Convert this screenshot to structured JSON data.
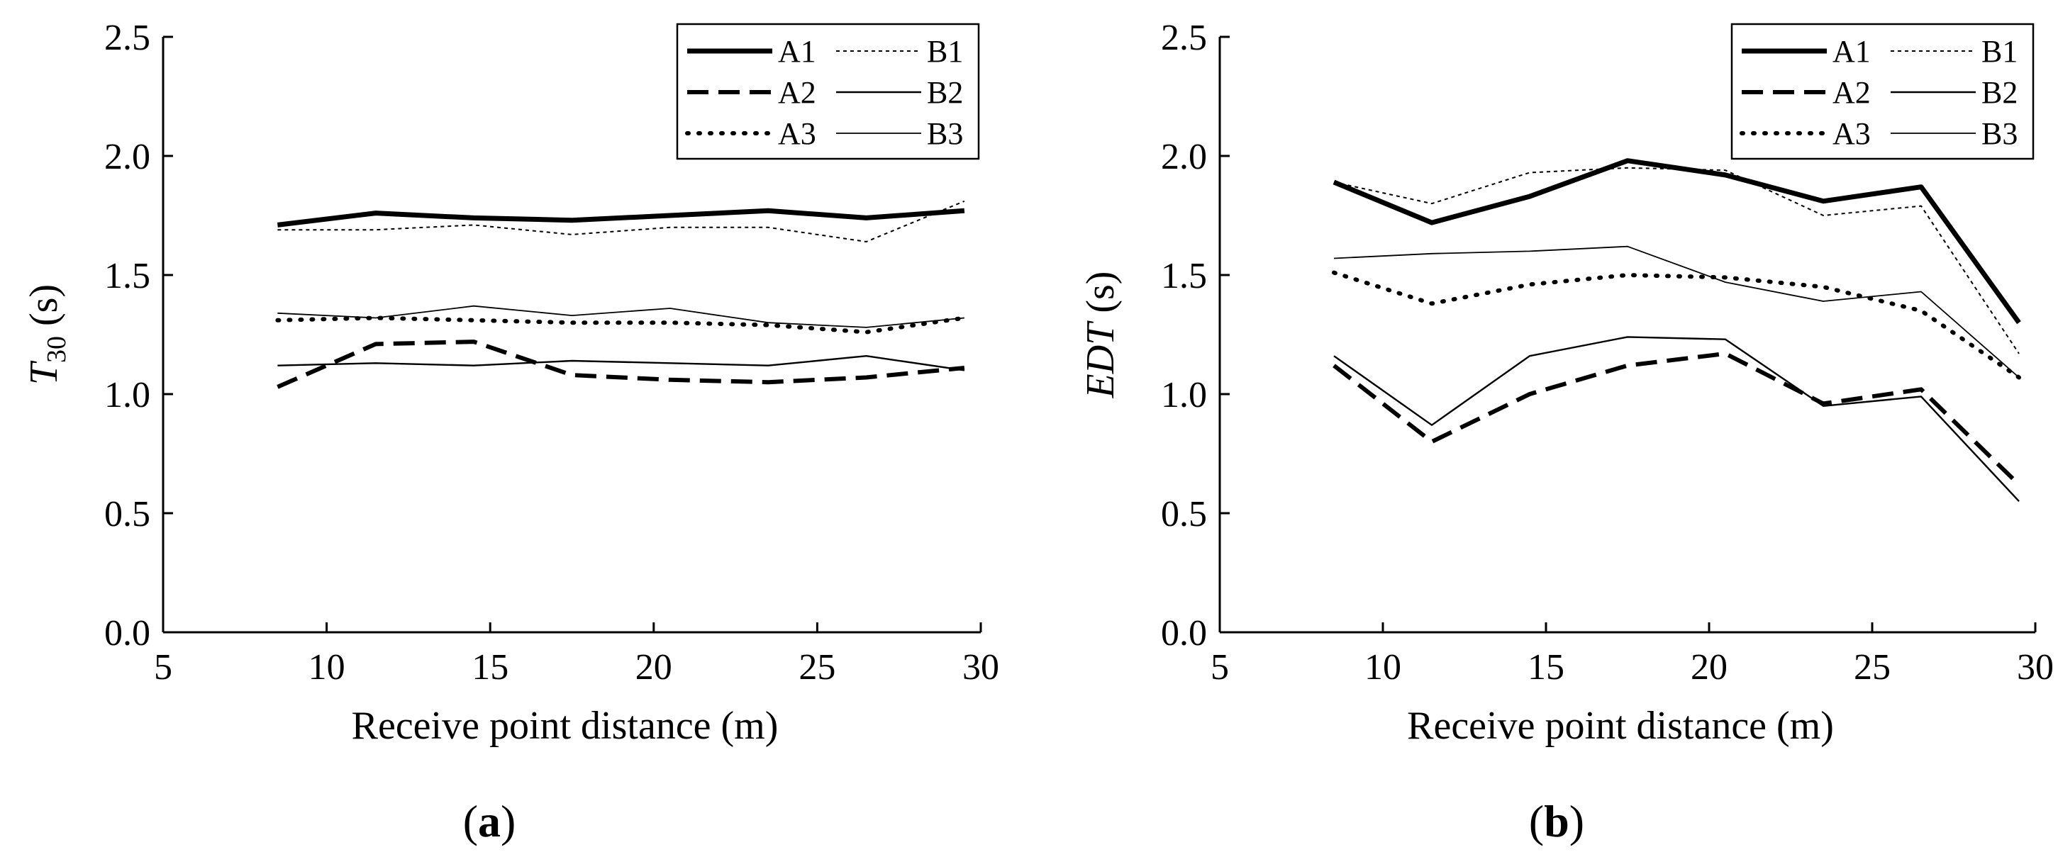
{
  "chart_data": [
    {
      "id": "a",
      "panel_label": "a",
      "type": "line",
      "ylabel_main": "T",
      "ylabel_sub": "30",
      "ylabel_unit": " (s)",
      "xlabel": "Receive point distance (m)",
      "xlim": [
        5,
        30
      ],
      "ylim": [
        0.0,
        2.5
      ],
      "xticks": [
        "5",
        "10",
        "15",
        "20",
        "25",
        "30"
      ],
      "yticks": [
        "0.0",
        "0.5",
        "1.0",
        "1.5",
        "2.0",
        "2.5"
      ],
      "legend_position": "top-right",
      "x": [
        8.5,
        11.5,
        14.5,
        17.5,
        20.5,
        23.5,
        26.5,
        29.5
      ],
      "series": [
        {
          "name": "A1",
          "style": "thick-solid",
          "values": [
            1.71,
            1.76,
            1.74,
            1.73,
            1.75,
            1.77,
            1.74,
            1.77
          ]
        },
        {
          "name": "A2",
          "style": "dashed",
          "values": [
            1.03,
            1.21,
            1.22,
            1.08,
            1.06,
            1.05,
            1.07,
            1.11
          ]
        },
        {
          "name": "A3",
          "style": "dotted",
          "values": [
            1.31,
            1.32,
            1.31,
            1.3,
            1.3,
            1.29,
            1.26,
            1.32
          ]
        },
        {
          "name": "B1",
          "style": "thin-dotted",
          "values": [
            1.69,
            1.69,
            1.71,
            1.67,
            1.7,
            1.7,
            1.64,
            1.81
          ]
        },
        {
          "name": "B2",
          "style": "thin-solid",
          "values": [
            1.12,
            1.13,
            1.12,
            1.14,
            1.13,
            1.12,
            1.16,
            1.1
          ]
        },
        {
          "name": "B3",
          "style": "thin-solid-2",
          "values": [
            1.34,
            1.32,
            1.37,
            1.33,
            1.36,
            1.3,
            1.28,
            1.32
          ]
        }
      ]
    },
    {
      "id": "b",
      "panel_label": "b",
      "type": "line",
      "ylabel_main": "EDT",
      "ylabel_sub": "",
      "ylabel_unit": " (s)",
      "xlabel": "Receive point distance (m)",
      "xlim": [
        5,
        30
      ],
      "ylim": [
        0.0,
        2.5
      ],
      "xticks": [
        "5",
        "10",
        "15",
        "20",
        "25",
        "30"
      ],
      "yticks": [
        "0.0",
        "0.5",
        "1.0",
        "1.5",
        "2.0",
        "2.5"
      ],
      "legend_position": "top-right",
      "x": [
        8.5,
        11.5,
        14.5,
        17.5,
        20.5,
        23.5,
        26.5,
        29.5
      ],
      "series": [
        {
          "name": "A1",
          "style": "thick-solid",
          "values": [
            1.89,
            1.72,
            1.83,
            1.98,
            1.92,
            1.81,
            1.87,
            1.3
          ]
        },
        {
          "name": "A2",
          "style": "dashed",
          "values": [
            1.12,
            0.8,
            1.0,
            1.12,
            1.17,
            0.96,
            1.02,
            0.62
          ]
        },
        {
          "name": "A3",
          "style": "dotted",
          "values": [
            1.51,
            1.38,
            1.46,
            1.5,
            1.49,
            1.45,
            1.35,
            1.07
          ]
        },
        {
          "name": "B1",
          "style": "thin-dotted",
          "values": [
            1.89,
            1.8,
            1.93,
            1.95,
            1.94,
            1.75,
            1.79,
            1.17
          ]
        },
        {
          "name": "B2",
          "style": "thin-solid",
          "values": [
            1.16,
            0.87,
            1.16,
            1.24,
            1.23,
            0.95,
            0.99,
            0.55
          ]
        },
        {
          "name": "B3",
          "style": "thin-solid-2",
          "values": [
            1.57,
            1.59,
            1.6,
            1.62,
            1.47,
            1.39,
            1.43,
            1.07
          ]
        }
      ]
    }
  ]
}
